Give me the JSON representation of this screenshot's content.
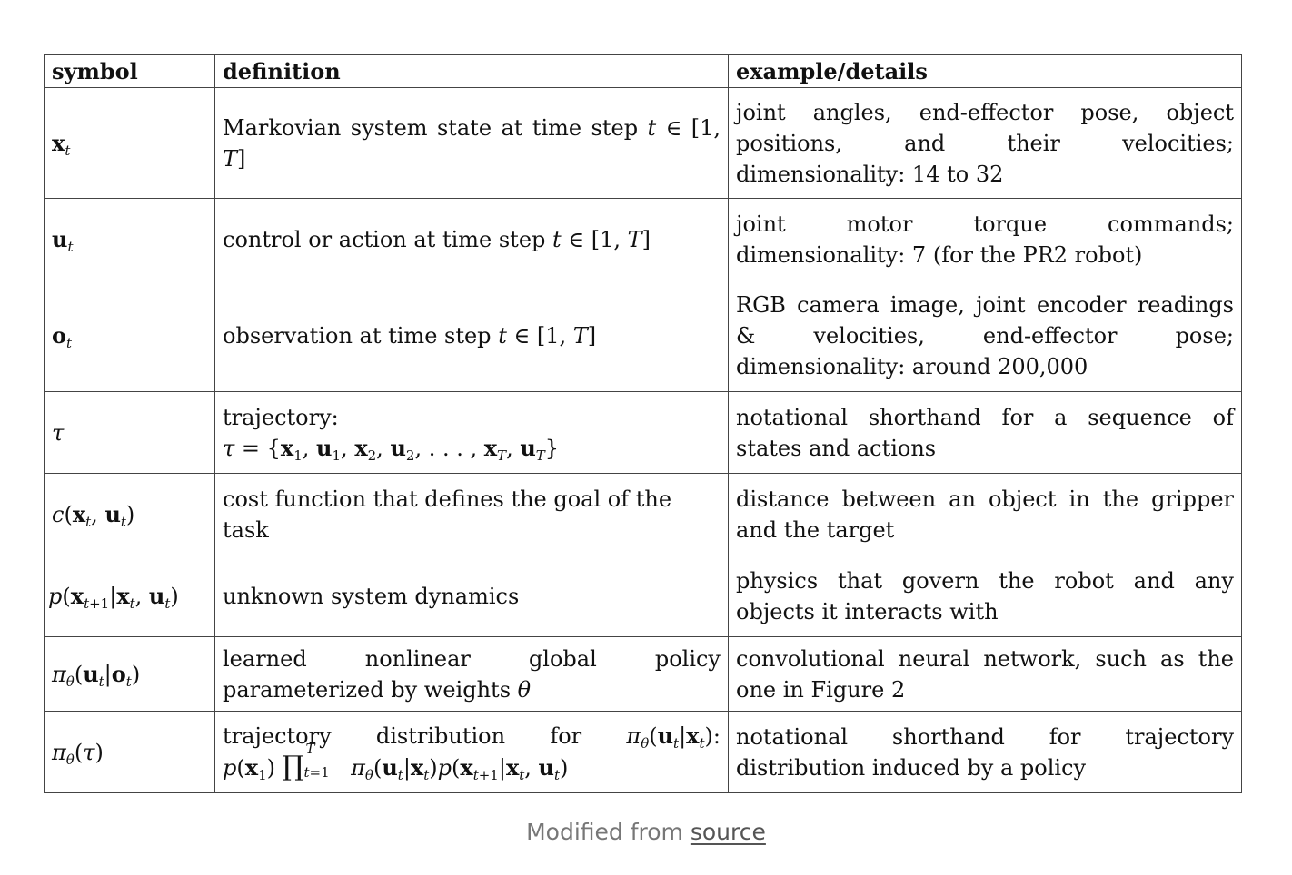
{
  "table": {
    "headers": [
      "symbol",
      "definition",
      "example/details"
    ],
    "rows": [
      {
        "definition": "Markovian system state at time step",
        "details": "joint angles, end-effector pose, object positions, and their velocities; dimensionality: 14 to 32"
      },
      {
        "definition": "control or action at time step",
        "details": "joint motor torque commands; dimensionality: 7 (for the PR2 robot)"
      },
      {
        "definition": "observation at time step",
        "details": "RGB camera image, joint encoder readings & velocities, end-effector pose; dimensionality: around 200,000"
      },
      {
        "definition": "trajectory:",
        "details": "notational shorthand for a sequence of states and actions"
      },
      {
        "definition": "cost function that defines the goal of the task",
        "details": "distance between an object in the gripper and the target"
      },
      {
        "definition": "unknown system dynamics",
        "details": "physics that govern the robot and any objects it interacts with"
      },
      {
        "definition": "learned nonlinear global policy parameterized by weights",
        "details": "convolutional neural network, such as the one in Figure 2"
      },
      {
        "definition_words": [
          "trajectory",
          "distribution",
          "for"
        ],
        "details": "notational shorthand for trajectory distribution induced by a policy"
      }
    ]
  },
  "caption": {
    "prefix": "Modified from ",
    "link": "source"
  }
}
